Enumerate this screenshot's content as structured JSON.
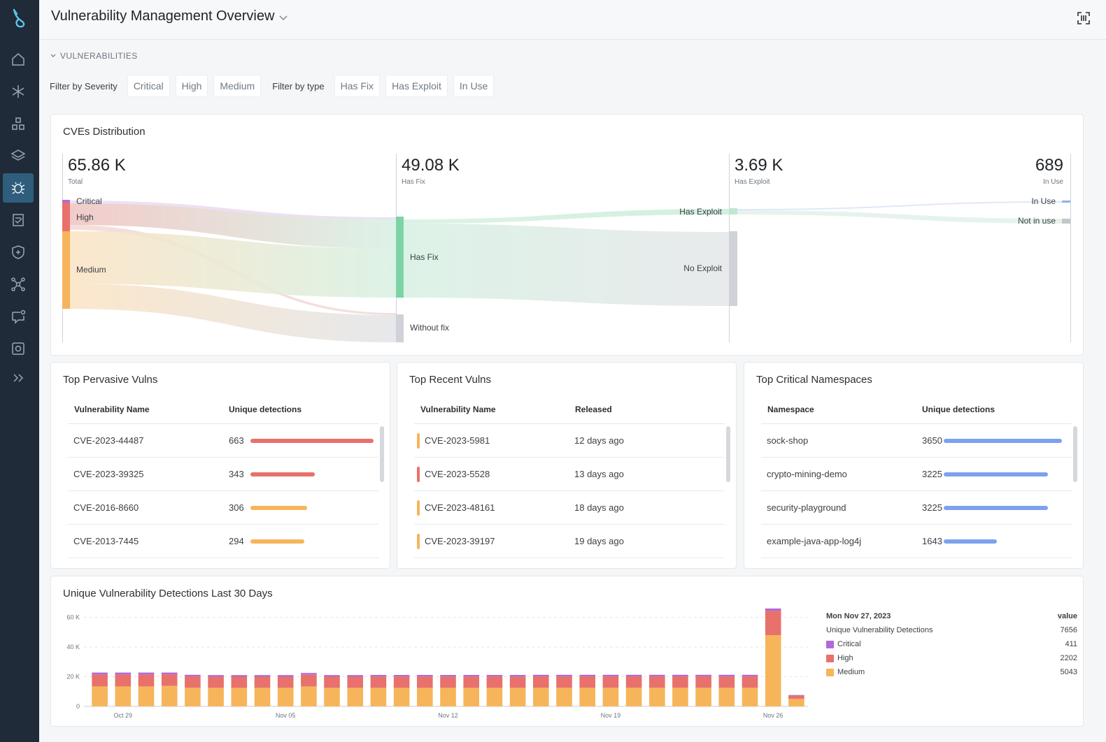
{
  "header": {
    "title": "Vulnerability Management Overview"
  },
  "section": {
    "label": "VULNERABILITIES"
  },
  "filters": {
    "severity_label": "Filter by Severity",
    "severity": [
      "Critical",
      "High",
      "Medium"
    ],
    "type_label": "Filter by type",
    "type": [
      "Has Fix",
      "Has Exploit",
      "In Use"
    ]
  },
  "sidebar": {
    "items": [
      "home-icon",
      "integrations-icon",
      "inventory-icon",
      "layers-icon",
      "vulnerabilities-icon",
      "compliance-icon",
      "policies-icon",
      "network-icon",
      "events-icon",
      "capture-icon",
      "expand-icon"
    ],
    "active": 4
  },
  "sankey": {
    "title": "CVEs Distribution",
    "columns": [
      {
        "value": "65.86 K",
        "label": "Total"
      },
      {
        "value": "49.08 K",
        "label": "Has Fix"
      },
      {
        "value": "3.69 K",
        "label": "Has Exploit"
      },
      {
        "value": "689",
        "label": "In Use"
      }
    ],
    "nodes": {
      "critical": "Critical",
      "high": "High",
      "medium": "Medium",
      "has_fix": "Has Fix",
      "without_fix": "Without fix",
      "has_exploit": "Has Exploit",
      "no_exploit": "No Exploit",
      "in_use": "In Use",
      "not_in_use": "Not in use"
    },
    "colors": {
      "critical": "#b06ad6",
      "high": "#e8716b",
      "medium": "#f6b55b",
      "fix": "#7ed3a6",
      "neutral": "#cfd3d7",
      "inuse": "#8fb0ea"
    }
  },
  "top_pervasive": {
    "title": "Top Pervasive Vulns",
    "columns": [
      "Vulnerability Name",
      "Unique detections"
    ],
    "rows": [
      {
        "name": "CVE-2023-44487",
        "count": "663",
        "fraction": 1.0,
        "color": "#e8716b"
      },
      {
        "name": "CVE-2023-39325",
        "count": "343",
        "fraction": 0.52,
        "color": "#e8716b"
      },
      {
        "name": "CVE-2016-8660",
        "count": "306",
        "fraction": 0.46,
        "color": "#f6b55b"
      },
      {
        "name": "CVE-2013-7445",
        "count": "294",
        "fraction": 0.44,
        "color": "#f6b55b"
      }
    ]
  },
  "top_recent": {
    "title": "Top Recent Vulns",
    "columns": [
      "Vulnerability Name",
      "Released"
    ],
    "rows": [
      {
        "name": "CVE-2023-5981",
        "released": "12 days ago",
        "color": "#f6b55b"
      },
      {
        "name": "CVE-2023-5528",
        "released": "13 days ago",
        "color": "#e8716b"
      },
      {
        "name": "CVE-2023-48161",
        "released": "18 days ago",
        "color": "#f6b55b"
      },
      {
        "name": "CVE-2023-39197",
        "released": "19 days ago",
        "color": "#f6b55b"
      }
    ]
  },
  "top_namespaces": {
    "title": "Top Critical Namespaces",
    "columns": [
      "Namespace",
      "Unique detections"
    ],
    "rows": [
      {
        "name": "sock-shop",
        "count": "3650",
        "fraction": 1.0,
        "color": "#7ea1ee"
      },
      {
        "name": "crypto-mining-demo",
        "count": "3225",
        "fraction": 0.88,
        "color": "#7ea1ee"
      },
      {
        "name": "security-playground",
        "count": "3225",
        "fraction": 0.88,
        "color": "#7ea1ee"
      },
      {
        "name": "example-java-app-log4j",
        "count": "1643",
        "fraction": 0.45,
        "color": "#7ea1ee"
      }
    ]
  },
  "chart_data": {
    "type": "bar",
    "stacked": true,
    "title": "Unique Vulnerability Detections Last 30 Days",
    "y_ticks": [
      "0",
      "20 K",
      "40 K",
      "60 K"
    ],
    "ylim": [
      0,
      65000
    ],
    "x_tick_labels": [
      {
        "index": 1,
        "label": "Oct 29"
      },
      {
        "index": 8,
        "label": "Nov 05"
      },
      {
        "index": 15,
        "label": "Nov 12"
      },
      {
        "index": 22,
        "label": "Nov 19"
      },
      {
        "index": 29,
        "label": "Nov 26"
      }
    ],
    "categories": [
      "Oct 28",
      "Oct 29",
      "Oct 30",
      "Oct 31",
      "Nov 01",
      "Nov 02",
      "Nov 03",
      "Nov 04",
      "Nov 05",
      "Nov 06",
      "Nov 07",
      "Nov 08",
      "Nov 09",
      "Nov 10",
      "Nov 11",
      "Nov 12",
      "Nov 13",
      "Nov 14",
      "Nov 15",
      "Nov 16",
      "Nov 17",
      "Nov 18",
      "Nov 19",
      "Nov 20",
      "Nov 21",
      "Nov 22",
      "Nov 23",
      "Nov 24",
      "Nov 25",
      "Nov 26",
      "Nov 27"
    ],
    "series": [
      {
        "name": "Medium",
        "color": "#f6b55b",
        "values": [
          13500,
          13500,
          13500,
          13800,
          12500,
          12400,
          12400,
          12400,
          12400,
          13500,
          12400,
          12400,
          12400,
          12400,
          12400,
          12400,
          12400,
          12400,
          12400,
          12500,
          12500,
          12500,
          12500,
          12500,
          12500,
          12500,
          12500,
          12500,
          12500,
          48000,
          5043
        ]
      },
      {
        "name": "High",
        "color": "#e8716b",
        "values": [
          8000,
          8000,
          8000,
          7800,
          7700,
          7600,
          7600,
          7600,
          7600,
          7800,
          7600,
          7600,
          7700,
          7700,
          7700,
          7700,
          7700,
          7700,
          7700,
          7700,
          7700,
          7700,
          7700,
          7700,
          7700,
          7700,
          7700,
          7700,
          7700,
          16500,
          2202
        ]
      },
      {
        "name": "Critical",
        "color": "#b06ad6",
        "values": [
          1300,
          1300,
          1300,
          1200,
          1100,
          1100,
          1100,
          1100,
          1100,
          1200,
          1100,
          1100,
          1100,
          1100,
          1100,
          1100,
          1100,
          1100,
          1100,
          1100,
          1100,
          1100,
          1100,
          1100,
          1100,
          1100,
          1100,
          1100,
          1100,
          1500,
          411
        ]
      }
    ],
    "legend": {
      "header_date": "Mon Nov 27, 2023",
      "header_value": "value",
      "rows": [
        {
          "name": "Unique Vulnerability Detections",
          "value": "7656",
          "color": ""
        },
        {
          "name": "Critical",
          "value": "411",
          "color": "#b06ad6"
        },
        {
          "name": "High",
          "value": "2202",
          "color": "#e8716b"
        },
        {
          "name": "Medium",
          "value": "5043",
          "color": "#f6b55b"
        }
      ]
    }
  }
}
